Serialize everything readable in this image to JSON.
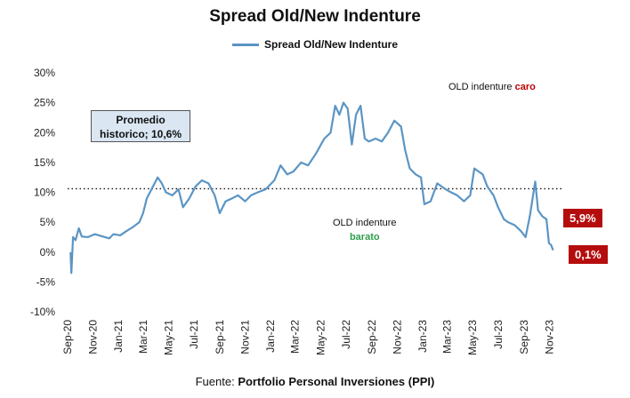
{
  "chart_data": {
    "type": "line",
    "title": "Spread Old/New Indenture",
    "series": [
      {
        "name": "Spread Old/New Indenture",
        "color": "#5b95c4",
        "points": [
          [
            "2020-09-08",
            0.0
          ],
          [
            "2020-09-10",
            -3.5
          ],
          [
            "2020-09-14",
            2.5
          ],
          [
            "2020-09-20",
            2.0
          ],
          [
            "2020-09-28",
            4.0
          ],
          [
            "2020-10-05",
            2.6
          ],
          [
            "2020-10-20",
            2.5
          ],
          [
            "2020-11-05",
            3.0
          ],
          [
            "2020-11-25",
            2.6
          ],
          [
            "2020-12-10",
            2.3
          ],
          [
            "2020-12-20",
            3.0
          ],
          [
            "2021-01-05",
            2.8
          ],
          [
            "2021-01-20",
            3.5
          ],
          [
            "2021-02-05",
            4.2
          ],
          [
            "2021-02-20",
            5.0
          ],
          [
            "2021-03-01",
            6.5
          ],
          [
            "2021-03-10",
            9.0
          ],
          [
            "2021-03-25",
            11.0
          ],
          [
            "2021-04-05",
            12.5
          ],
          [
            "2021-04-15",
            11.5
          ],
          [
            "2021-04-25",
            10.0
          ],
          [
            "2021-05-10",
            9.5
          ],
          [
            "2021-05-25",
            10.5
          ],
          [
            "2021-06-05",
            7.5
          ],
          [
            "2021-06-20",
            9.0
          ],
          [
            "2021-07-05",
            11.0
          ],
          [
            "2021-07-20",
            12.0
          ],
          [
            "2021-08-05",
            11.5
          ],
          [
            "2021-08-20",
            9.5
          ],
          [
            "2021-09-01",
            6.5
          ],
          [
            "2021-09-15",
            8.5
          ],
          [
            "2021-10-01",
            9.0
          ],
          [
            "2021-10-15",
            9.5
          ],
          [
            "2021-11-01",
            8.5
          ],
          [
            "2021-11-15",
            9.5
          ],
          [
            "2021-12-01",
            10.0
          ],
          [
            "2021-12-20",
            10.5
          ],
          [
            "2022-01-10",
            12.0
          ],
          [
            "2022-01-25",
            14.5
          ],
          [
            "2022-02-10",
            13.0
          ],
          [
            "2022-02-25",
            13.5
          ],
          [
            "2022-03-15",
            15.0
          ],
          [
            "2022-04-01",
            14.5
          ],
          [
            "2022-04-20",
            16.5
          ],
          [
            "2022-05-10",
            19.0
          ],
          [
            "2022-05-25",
            20.0
          ],
          [
            "2022-06-05",
            24.5
          ],
          [
            "2022-06-15",
            23.0
          ],
          [
            "2022-06-25",
            25.0
          ],
          [
            "2022-07-05",
            24.0
          ],
          [
            "2022-07-15",
            18.0
          ],
          [
            "2022-07-25",
            23.0
          ],
          [
            "2022-08-05",
            24.5
          ],
          [
            "2022-08-15",
            19.0
          ],
          [
            "2022-08-25",
            18.5
          ],
          [
            "2022-09-10",
            19.0
          ],
          [
            "2022-09-25",
            18.5
          ],
          [
            "2022-10-10",
            20.0
          ],
          [
            "2022-10-25",
            22.0
          ],
          [
            "2022-11-10",
            21.0
          ],
          [
            "2022-11-20",
            17.0
          ],
          [
            "2022-12-01",
            14.0
          ],
          [
            "2022-12-15",
            13.0
          ],
          [
            "2022-12-28",
            12.5
          ],
          [
            "2023-01-05",
            8.0
          ],
          [
            "2023-01-20",
            8.5
          ],
          [
            "2023-02-05",
            11.5
          ],
          [
            "2023-02-25",
            10.5
          ],
          [
            "2023-03-10",
            10.0
          ],
          [
            "2023-03-25",
            9.5
          ],
          [
            "2023-04-10",
            8.5
          ],
          [
            "2023-04-25",
            9.5
          ],
          [
            "2023-05-05",
            14.0
          ],
          [
            "2023-05-15",
            13.5
          ],
          [
            "2023-05-25",
            13.0
          ],
          [
            "2023-06-05",
            11.0
          ],
          [
            "2023-06-20",
            9.5
          ],
          [
            "2023-07-01",
            7.5
          ],
          [
            "2023-07-15",
            5.5
          ],
          [
            "2023-07-25",
            5.0
          ],
          [
            "2023-08-10",
            4.5
          ],
          [
            "2023-08-25",
            3.5
          ],
          [
            "2023-09-05",
            2.5
          ],
          [
            "2023-09-15",
            6.0
          ],
          [
            "2023-09-28",
            11.8
          ],
          [
            "2023-10-05",
            7.0
          ],
          [
            "2023-10-15",
            6.0
          ],
          [
            "2023-10-25",
            5.5
          ],
          [
            "2023-10-31",
            1.5
          ],
          [
            "2023-11-05",
            1.2
          ],
          [
            "2023-11-10",
            0.3
          ]
        ]
      }
    ],
    "x_ticks": [
      "Sep-20",
      "Nov-20",
      "Jan-21",
      "Mar-21",
      "May-21",
      "Jul-21",
      "Sep-21",
      "Nov-21",
      "Jan-22",
      "Mar-22",
      "May-22",
      "Jul-22",
      "Sep-22",
      "Nov-22",
      "Jan-23",
      "Mar-23",
      "May-23",
      "Jul-23",
      "Sep-23",
      "Nov-23"
    ],
    "x_tick_dates": [
      "2020-09-01",
      "2020-11-01",
      "2021-01-01",
      "2021-03-01",
      "2021-05-01",
      "2021-07-01",
      "2021-09-01",
      "2021-11-01",
      "2022-01-01",
      "2022-03-01",
      "2022-05-01",
      "2022-07-01",
      "2022-09-01",
      "2022-11-01",
      "2023-01-01",
      "2023-03-01",
      "2023-05-01",
      "2023-07-01",
      "2023-09-01",
      "2023-11-01"
    ],
    "xlim": [
      "2020-09-01",
      "2023-12-15"
    ],
    "y_ticks": [
      "30%",
      "25%",
      "20%",
      "15%",
      "10%",
      "5%",
      "0%",
      "-5%",
      "-10%"
    ],
    "ylim": [
      -10,
      30
    ],
    "average_line": 10.6,
    "legend": "top-center",
    "grid": false
  },
  "annotations": {
    "promedio_line1": "Promedio",
    "promedio_line2": "historico; 10,6%",
    "caro_prefix": "OLD indenture ",
    "caro_word": "caro",
    "barato_line1": "OLD indenture",
    "barato_word": "barato",
    "badge_high": "5,9%",
    "badge_low": "0,1%"
  },
  "source": {
    "prefix": "Fuente: ",
    "name": "Portfolio Personal Inversiones (PPI)"
  },
  "colors": {
    "line": "#5b95c4",
    "badge": "#b50d0d",
    "caro": "#c00000",
    "barato": "#2e9e4a"
  }
}
